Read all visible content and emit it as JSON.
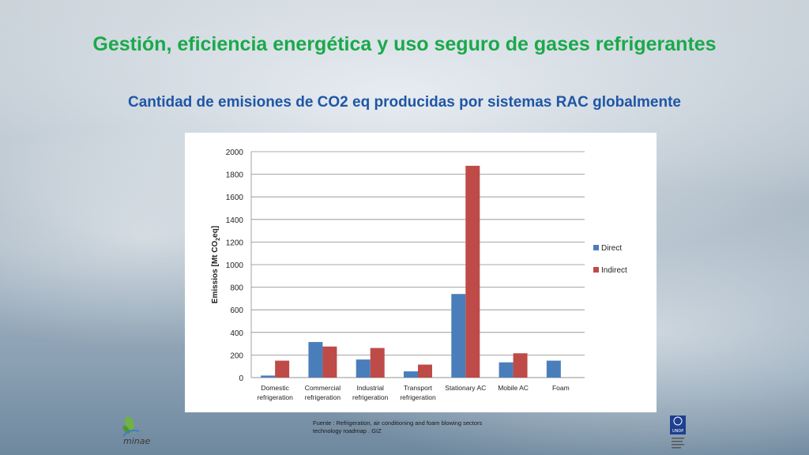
{
  "title": "Gestión, eficiencia energética y uso seguro de gases refrigerantes",
  "subtitle": "Cantidad de emisiones de CO2 eq producidas por sistemas RAC globalmente",
  "source": "Fuente : Refrigeration, air conditioning and foam blowing sectors technology roadmap . GIZ",
  "logos": {
    "left_text": "minae",
    "right_text": "UNDP"
  },
  "colors": {
    "title": "#1aa94a",
    "subtitle": "#1f56a5",
    "direct": "#4a7ebb",
    "indirect": "#be4b48"
  },
  "chart_data": {
    "type": "bar",
    "categories": [
      [
        "Domestic",
        "refrigeration"
      ],
      [
        "Commercial",
        "refrigeration"
      ],
      [
        "Industrial",
        "refrigeration"
      ],
      [
        "Transport",
        "refrigeration"
      ],
      [
        "Stationary AC"
      ],
      [
        "Mobile AC"
      ],
      [
        "Foam"
      ]
    ],
    "series": [
      {
        "name": "Direct",
        "color": "#4a7ebb",
        "values": [
          18,
          315,
          160,
          55,
          740,
          135,
          150
        ]
      },
      {
        "name": "Indirect",
        "color": "#be4b48",
        "values": [
          150,
          275,
          262,
          115,
          1875,
          215,
          null
        ]
      }
    ],
    "ylabel": "Emissios [Mt CO2eq]",
    "ylim": [
      0,
      2000
    ],
    "yticks": [
      0,
      200,
      400,
      600,
      800,
      1000,
      1200,
      1400,
      1600,
      1800,
      2000
    ],
    "grid": true,
    "legend_position": "right"
  }
}
